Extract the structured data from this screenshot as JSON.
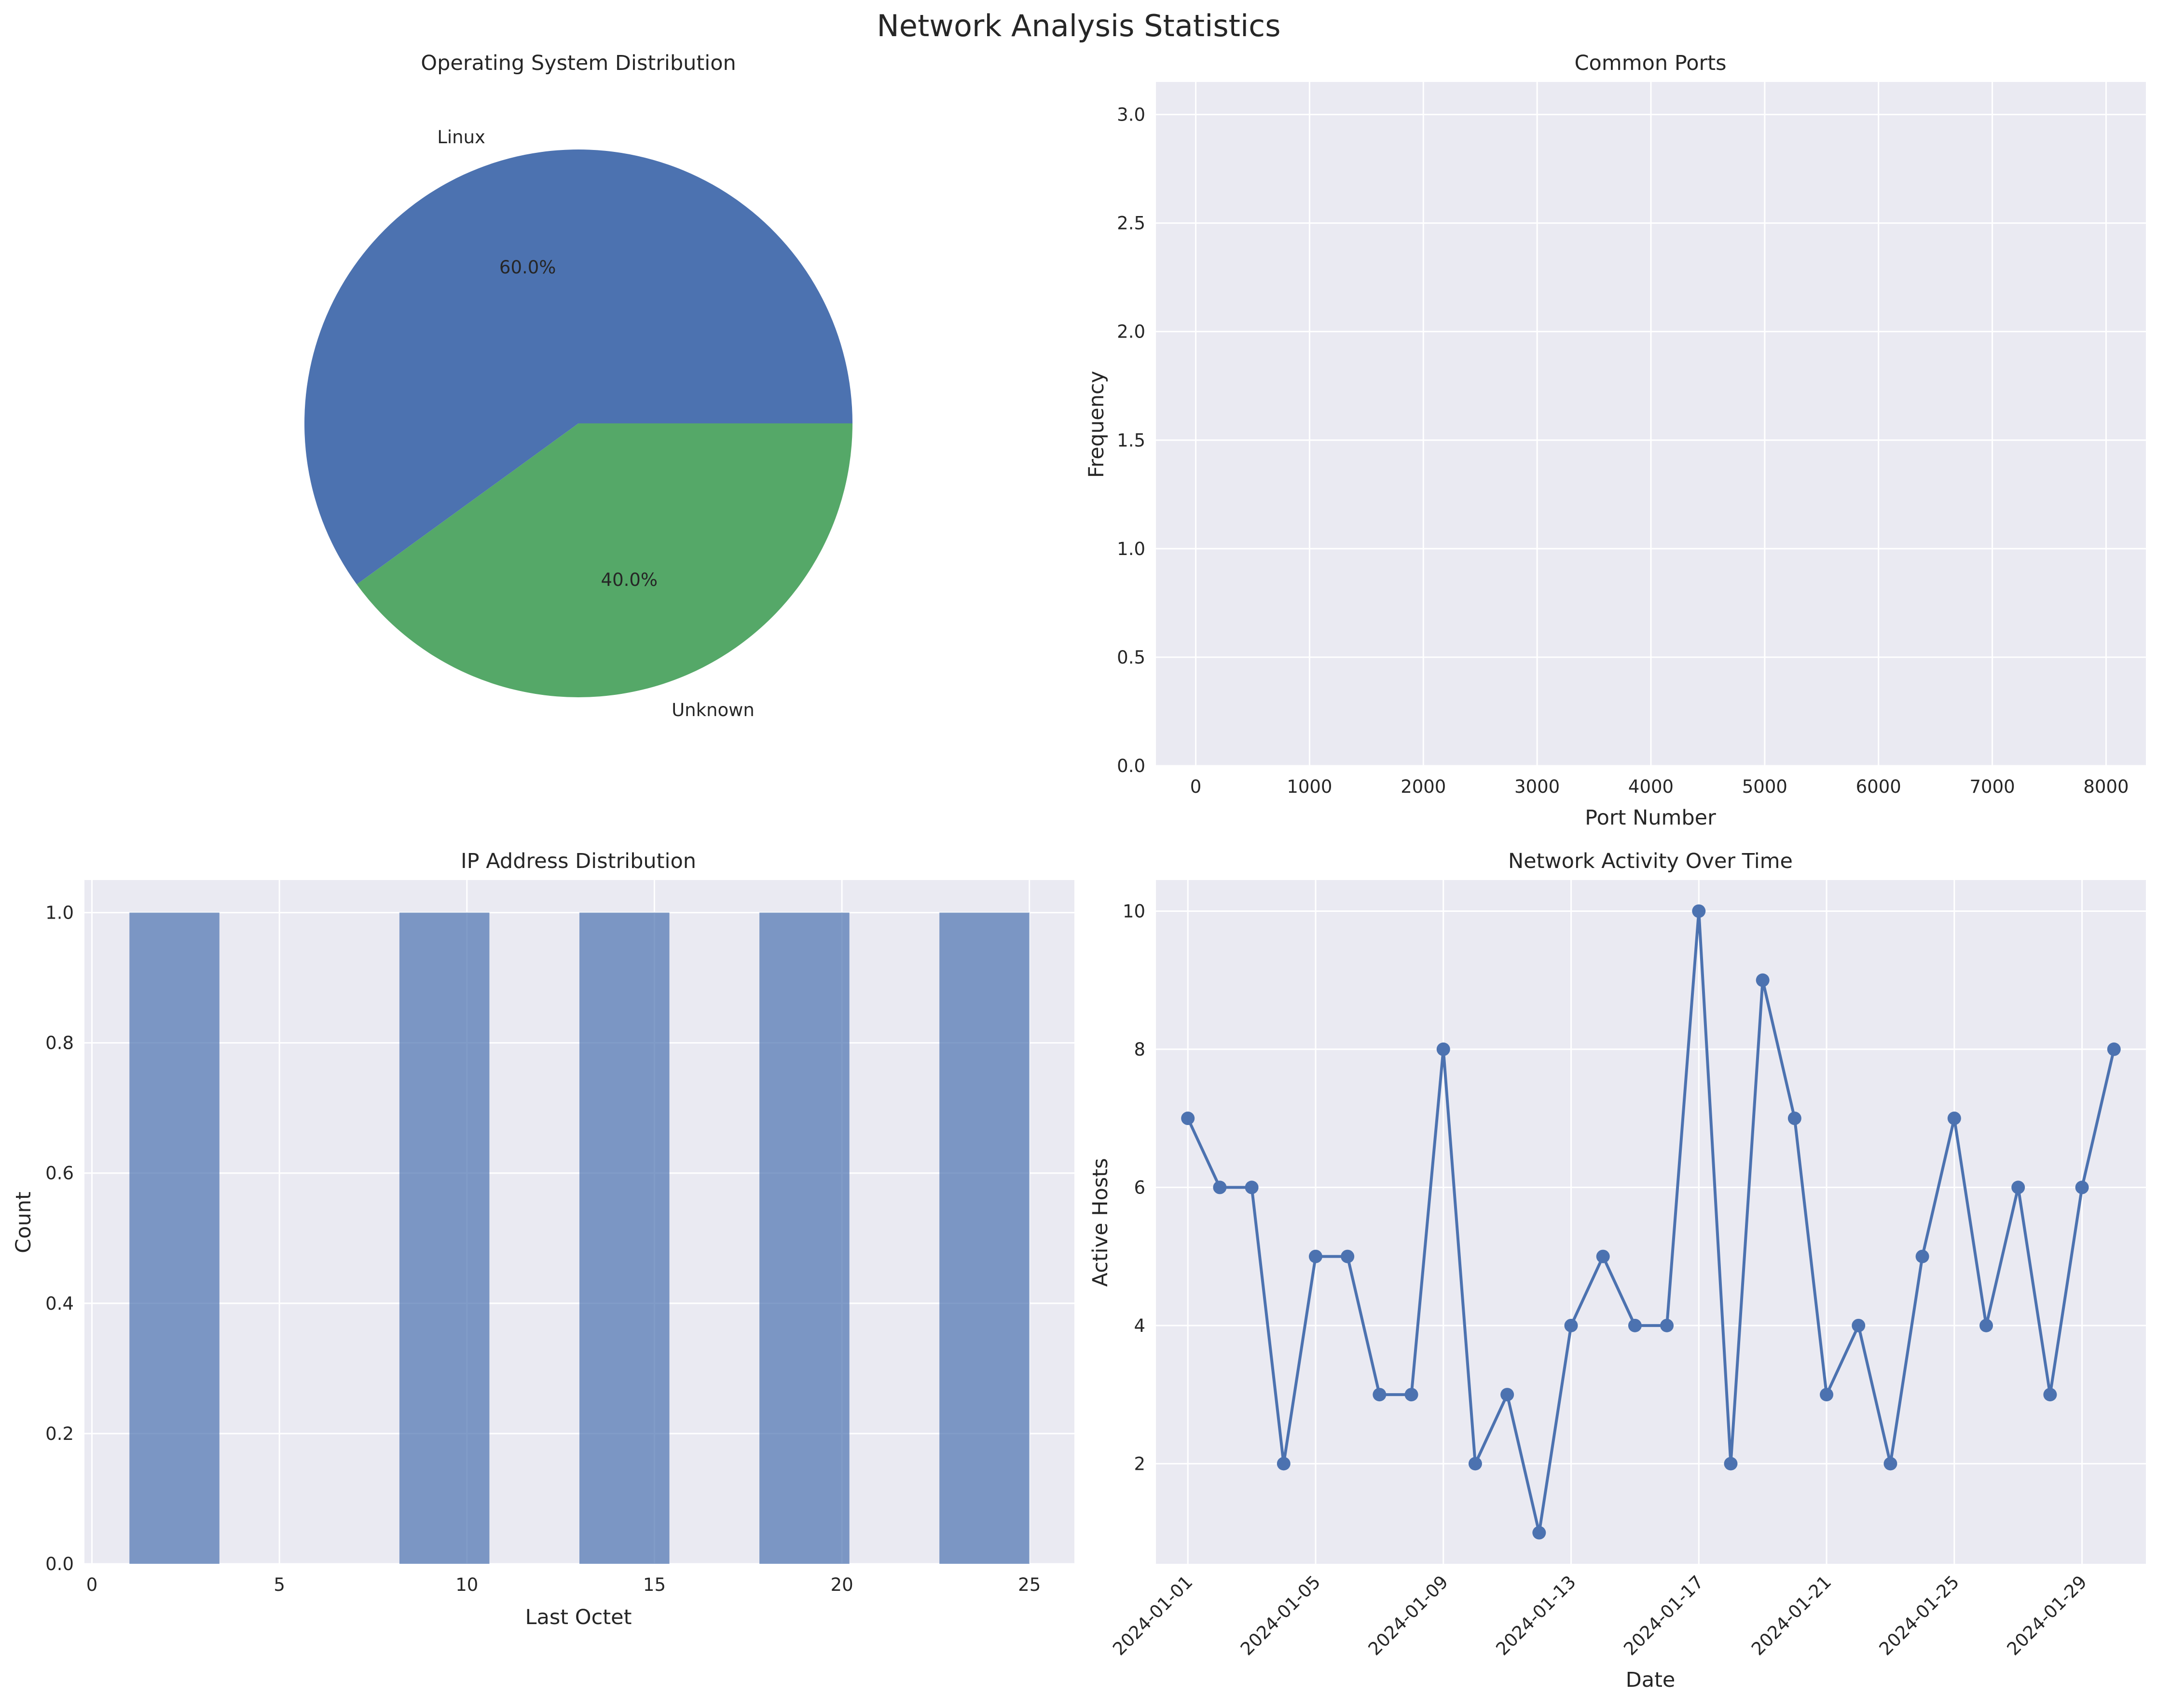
{
  "figure": {
    "suptitle": "Network Analysis Statistics"
  },
  "colors": {
    "blue": "#4c72b0",
    "green": "#55a868",
    "face": "#eaeaf2",
    "grid": "#ffffff",
    "text": "#262626"
  },
  "chart_data": [
    {
      "type": "pie",
      "title": "Operating System Distribution",
      "labels": [
        "Linux",
        "Unknown"
      ],
      "values": [
        60.0,
        40.0
      ],
      "autopct": [
        "60.0%",
        "40.0%"
      ]
    },
    {
      "type": "bar",
      "title": "Common Ports",
      "xlabel": "Port Number",
      "ylabel": "Frequency",
      "categories": [],
      "values": [],
      "xlim": [
        -350,
        8350
      ],
      "ylim": [
        0,
        3.15
      ],
      "xticks": [
        "0",
        "1000",
        "2000",
        "3000",
        "4000",
        "5000",
        "6000",
        "7000",
        "8000"
      ],
      "yticks": [
        "0.0",
        "0.5",
        "1.0",
        "1.5",
        "2.0",
        "2.5",
        "3.0"
      ],
      "grid": true
    },
    {
      "type": "bar",
      "title": "IP Address Distribution",
      "xlabel": "Last Octet",
      "ylabel": "Count",
      "bins": [
        [
          1.0,
          3.4
        ],
        [
          8.2,
          10.6
        ],
        [
          13.0,
          15.4
        ],
        [
          17.8,
          20.2
        ],
        [
          22.6,
          25.0
        ]
      ],
      "values": [
        1,
        1,
        1,
        1,
        1
      ],
      "xlim": [
        -0.2,
        26.2
      ],
      "ylim": [
        0,
        1.05
      ],
      "xticks": [
        "0",
        "5",
        "10",
        "15",
        "20",
        "25"
      ],
      "yticks": [
        "0.0",
        "0.2",
        "0.4",
        "0.6",
        "0.8",
        "1.0"
      ],
      "grid": true
    },
    {
      "type": "line",
      "title": "Network Activity Over Time",
      "xlabel": "Date",
      "ylabel": "Active Hosts",
      "x": [
        "2024-01-01",
        "2024-01-02",
        "2024-01-03",
        "2024-01-04",
        "2024-01-05",
        "2024-01-06",
        "2024-01-07",
        "2024-01-08",
        "2024-01-09",
        "2024-01-10",
        "2024-01-11",
        "2024-01-12",
        "2024-01-13",
        "2024-01-14",
        "2024-01-15",
        "2024-01-16",
        "2024-01-17",
        "2024-01-18",
        "2024-01-19",
        "2024-01-20",
        "2024-01-21",
        "2024-01-22",
        "2024-01-23",
        "2024-01-24",
        "2024-01-25",
        "2024-01-26",
        "2024-01-27",
        "2024-01-28",
        "2024-01-29",
        "2024-01-30"
      ],
      "series": [
        {
          "values": [
            7,
            6,
            6,
            2,
            5,
            5,
            3,
            3,
            8,
            2,
            3,
            1,
            4,
            5,
            4,
            4,
            10,
            2,
            9,
            7,
            3,
            4,
            2,
            5,
            7,
            4,
            6,
            3,
            6,
            8
          ]
        }
      ],
      "xlim": [
        "2023-12-31",
        "2024-01-31"
      ],
      "ylim": [
        0.55,
        10.45
      ],
      "xticks": [
        "2024-01-01",
        "2024-01-05",
        "2024-01-09",
        "2024-01-13",
        "2024-01-17",
        "2024-01-21",
        "2024-01-25",
        "2024-01-29"
      ],
      "yticks": [
        "2",
        "4",
        "6",
        "8",
        "10"
      ],
      "grid": true
    }
  ]
}
